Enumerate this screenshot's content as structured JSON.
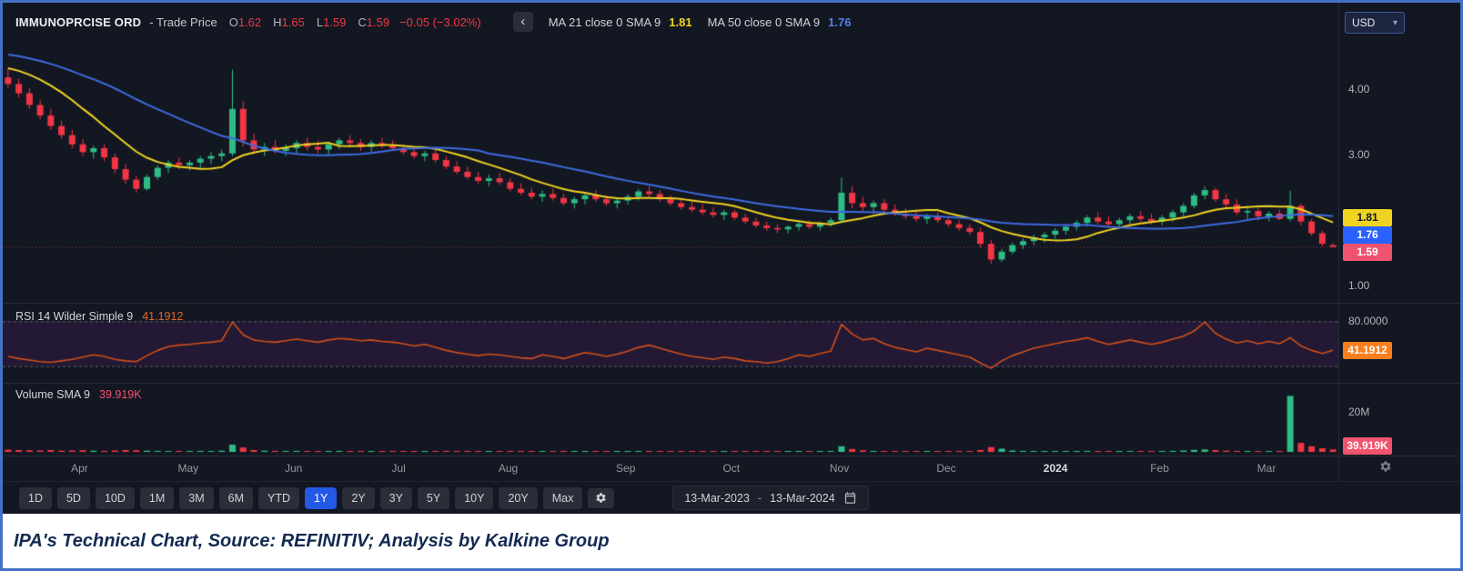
{
  "window": {
    "currency": "USD"
  },
  "icons": {
    "chevron_left": "‹",
    "caret_down": "▾"
  },
  "header": {
    "symbol": "IMMUNOPRCISE ORD",
    "series": "- Trade Price",
    "ohlc": {
      "o_label": "O",
      "o": "1.62",
      "h_label": "H",
      "h": "1.65",
      "l_label": "L",
      "l": "1.59",
      "c_label": "C",
      "c": "1.59",
      "change": "−0.05 (−3.02%)"
    },
    "ma1": {
      "label": "MA 21 close 0 SMA 9",
      "value": "1.81"
    },
    "ma2": {
      "label": "MA 50 close 0 SMA 9",
      "value": "1.76"
    }
  },
  "chart_axis": {
    "p1": "4.00",
    "p2": "3.00",
    "p3": "1.00",
    "ma21": "1.81",
    "ma50": "1.76",
    "last": "1.59",
    "rsi_level": "80.0000",
    "rsi_value": "41.1912",
    "vol_level": "20M",
    "vol_value": "39.919K"
  },
  "rsi_panel": {
    "label": "RSI 14 Wilder Simple 9",
    "value": "41.1912"
  },
  "volume_panel": {
    "label": "Volume SMA 9",
    "value": "39.919K"
  },
  "toolbar": {
    "ranges": [
      "1D",
      "5D",
      "10D",
      "1M",
      "3M",
      "6M",
      "YTD",
      "1Y",
      "2Y",
      "3Y",
      "5Y",
      "10Y",
      "20Y",
      "Max"
    ],
    "selected": "1Y",
    "date_from": "13-Mar-2023",
    "date_sep": "-",
    "date_to": "13-Mar-2024"
  },
  "caption": {
    "text": "IPA's Technical Chart, Source: REFINITIV; Analysis by Kalkine Group"
  },
  "chart_data": {
    "type": "candlestick",
    "title": "IMMUNOPRCISE ORD - Trade Price",
    "panels": [
      "price",
      "rsi",
      "volume"
    ],
    "x_axis": {
      "start": "13-Mar-2023",
      "end": "13-Mar-2024"
    },
    "price_axis": {
      "min": 0.85,
      "max": 4.6,
      "ticks": [
        "4.00",
        "3.00",
        "1.00"
      ]
    },
    "last_price": 1.59,
    "ohlc_last": {
      "open": 1.62,
      "high": 1.65,
      "low": 1.59,
      "close": 1.59,
      "change": -0.05,
      "change_pct": -3.02
    },
    "colors": {
      "up": "#2ebd85",
      "down": "#f23645",
      "ma21": "#f0d321",
      "ma50": "#3d6be0",
      "rsi_line": "#d0501a",
      "rsi_box": "#f97e1e",
      "last_box": "#f0536e",
      "accent_blue": "#2962ff"
    },
    "overlays": [
      {
        "name": "MA 21 close 0 SMA 9",
        "window": 10,
        "seed": 4.35,
        "color": "#f0d321",
        "last": 1.81
      },
      {
        "name": "MA 50 close 0 SMA 9",
        "window": 24,
        "seed": 4.55,
        "color": "#3d6be0",
        "last": 1.76
      }
    ],
    "rsi_levels": [
      80,
      20
    ],
    "rsi_last": 41.1912,
    "rsi_style": {
      "line": "#d0501a",
      "band_fill": "rgba(156,39,176,0.13)",
      "level_line": "#60646e"
    },
    "volume_axis": {
      "tick": "20M",
      "tick_value_m": 20
    },
    "volume_sma_last": "39.919K",
    "months": [
      {
        "label": "Apr",
        "i": 7
      },
      {
        "label": "May",
        "i": 17
      },
      {
        "label": "Jun",
        "i": 27
      },
      {
        "label": "Jul",
        "i": 37
      },
      {
        "label": "Aug",
        "i": 47
      },
      {
        "label": "Sep",
        "i": 58
      },
      {
        "label": "Oct",
        "i": 68
      },
      {
        "label": "Nov",
        "i": 78
      },
      {
        "label": "Dec",
        "i": 88
      },
      {
        "label": "2024",
        "i": 98,
        "bold": true
      },
      {
        "label": "Feb",
        "i": 108
      },
      {
        "label": "Mar",
        "i": 118
      }
    ],
    "candles": [
      [
        4.18,
        4.32,
        4.02,
        4.08
      ],
      [
        4.08,
        4.16,
        3.88,
        3.94
      ],
      [
        3.94,
        4.02,
        3.7,
        3.76
      ],
      [
        3.76,
        3.84,
        3.54,
        3.6
      ],
      [
        3.6,
        3.7,
        3.38,
        3.44
      ],
      [
        3.44,
        3.52,
        3.24,
        3.3
      ],
      [
        3.3,
        3.38,
        3.1,
        3.16
      ],
      [
        3.16,
        3.24,
        2.98,
        3.04
      ],
      [
        3.04,
        3.14,
        2.94,
        3.1
      ],
      [
        3.1,
        3.16,
        2.9,
        2.96
      ],
      [
        2.96,
        3.02,
        2.72,
        2.78
      ],
      [
        2.78,
        2.86,
        2.56,
        2.62
      ],
      [
        2.62,
        2.68,
        2.42,
        2.48
      ],
      [
        2.48,
        2.7,
        2.45,
        2.66
      ],
      [
        2.66,
        2.84,
        2.62,
        2.8
      ],
      [
        2.8,
        2.92,
        2.72,
        2.88
      ],
      [
        2.88,
        2.96,
        2.78,
        2.84
      ],
      [
        2.84,
        2.92,
        2.76,
        2.88
      ],
      [
        2.88,
        2.98,
        2.8,
        2.94
      ],
      [
        2.94,
        3.04,
        2.86,
        2.98
      ],
      [
        2.98,
        3.08,
        2.9,
        3.02
      ],
      [
        3.02,
        4.3,
        2.98,
        3.7
      ],
      [
        3.7,
        3.82,
        3.12,
        3.22
      ],
      [
        3.22,
        3.32,
        3.0,
        3.08
      ],
      [
        3.08,
        3.18,
        2.98,
        3.12
      ],
      [
        3.12,
        3.22,
        3.02,
        3.06
      ],
      [
        3.06,
        3.16,
        2.98,
        3.1
      ],
      [
        3.1,
        3.22,
        3.02,
        3.18
      ],
      [
        3.18,
        3.26,
        3.06,
        3.12
      ],
      [
        3.12,
        3.22,
        3.02,
        3.08
      ],
      [
        3.08,
        3.2,
        3.0,
        3.16
      ],
      [
        3.16,
        3.26,
        3.08,
        3.22
      ],
      [
        3.22,
        3.3,
        3.12,
        3.18
      ],
      [
        3.18,
        3.24,
        3.06,
        3.12
      ],
      [
        3.12,
        3.22,
        3.04,
        3.18
      ],
      [
        3.18,
        3.26,
        3.1,
        3.14
      ],
      [
        3.14,
        3.22,
        3.06,
        3.1
      ],
      [
        3.1,
        3.16,
        3.0,
        3.04
      ],
      [
        3.04,
        3.1,
        2.94,
        2.98
      ],
      [
        2.98,
        3.06,
        2.9,
        3.02
      ],
      [
        3.02,
        3.08,
        2.88,
        2.92
      ],
      [
        2.92,
        2.98,
        2.78,
        2.82
      ],
      [
        2.82,
        2.9,
        2.7,
        2.74
      ],
      [
        2.74,
        2.82,
        2.62,
        2.66
      ],
      [
        2.66,
        2.74,
        2.56,
        2.6
      ],
      [
        2.6,
        2.7,
        2.52,
        2.64
      ],
      [
        2.64,
        2.72,
        2.54,
        2.58
      ],
      [
        2.58,
        2.64,
        2.44,
        2.48
      ],
      [
        2.48,
        2.56,
        2.38,
        2.42
      ],
      [
        2.42,
        2.5,
        2.32,
        2.36
      ],
      [
        2.36,
        2.46,
        2.28,
        2.4
      ],
      [
        2.4,
        2.48,
        2.3,
        2.34
      ],
      [
        2.34,
        2.4,
        2.22,
        2.26
      ],
      [
        2.26,
        2.36,
        2.18,
        2.32
      ],
      [
        2.32,
        2.42,
        2.24,
        2.38
      ],
      [
        2.38,
        2.46,
        2.28,
        2.32
      ],
      [
        2.32,
        2.38,
        2.22,
        2.26
      ],
      [
        2.26,
        2.34,
        2.18,
        2.3
      ],
      [
        2.3,
        2.4,
        2.24,
        2.36
      ],
      [
        2.36,
        2.48,
        2.3,
        2.44
      ],
      [
        2.44,
        2.52,
        2.34,
        2.4
      ],
      [
        2.4,
        2.46,
        2.28,
        2.32
      ],
      [
        2.32,
        2.38,
        2.22,
        2.26
      ],
      [
        2.26,
        2.32,
        2.16,
        2.2
      ],
      [
        2.2,
        2.28,
        2.12,
        2.16
      ],
      [
        2.16,
        2.24,
        2.08,
        2.12
      ],
      [
        2.12,
        2.2,
        2.04,
        2.08
      ],
      [
        2.08,
        2.16,
        2.0,
        2.12
      ],
      [
        2.12,
        2.16,
        2.0,
        2.04
      ],
      [
        2.04,
        2.1,
        1.94,
        1.98
      ],
      [
        1.98,
        2.04,
        1.88,
        1.92
      ],
      [
        1.92,
        1.98,
        1.84,
        1.88
      ],
      [
        1.88,
        1.94,
        1.8,
        1.86
      ],
      [
        1.86,
        1.92,
        1.8,
        1.9
      ],
      [
        1.9,
        1.98,
        1.84,
        1.94
      ],
      [
        1.94,
        2.0,
        1.86,
        1.9
      ],
      [
        1.9,
        1.98,
        1.84,
        1.96
      ],
      [
        1.96,
        2.04,
        1.9,
        2.0
      ],
      [
        2.0,
        2.65,
        1.98,
        2.42
      ],
      [
        2.42,
        2.52,
        2.18,
        2.26
      ],
      [
        2.26,
        2.36,
        2.14,
        2.2
      ],
      [
        2.2,
        2.3,
        2.1,
        2.26
      ],
      [
        2.26,
        2.32,
        2.12,
        2.16
      ],
      [
        2.16,
        2.24,
        2.06,
        2.1
      ],
      [
        2.1,
        2.18,
        2.02,
        2.06
      ],
      [
        2.06,
        2.14,
        1.98,
        2.02
      ],
      [
        2.02,
        2.1,
        1.94,
        2.06
      ],
      [
        2.06,
        2.12,
        1.96,
        2.0
      ],
      [
        2.0,
        2.06,
        1.9,
        1.94
      ],
      [
        1.94,
        2.0,
        1.84,
        1.88
      ],
      [
        1.88,
        1.94,
        1.78,
        1.82
      ],
      [
        1.82,
        1.88,
        1.58,
        1.64
      ],
      [
        1.64,
        1.7,
        1.33,
        1.4
      ],
      [
        1.4,
        1.56,
        1.36,
        1.52
      ],
      [
        1.52,
        1.66,
        1.48,
        1.62
      ],
      [
        1.62,
        1.72,
        1.56,
        1.68
      ],
      [
        1.68,
        1.78,
        1.62,
        1.74
      ],
      [
        1.74,
        1.82,
        1.66,
        1.78
      ],
      [
        1.78,
        1.88,
        1.72,
        1.84
      ],
      [
        1.84,
        1.94,
        1.78,
        1.9
      ],
      [
        1.9,
        2.0,
        1.84,
        1.96
      ],
      [
        1.96,
        2.08,
        1.9,
        2.04
      ],
      [
        2.04,
        2.12,
        1.94,
        1.98
      ],
      [
        1.98,
        2.06,
        1.9,
        1.94
      ],
      [
        1.94,
        2.04,
        1.88,
        2.0
      ],
      [
        2.0,
        2.1,
        1.92,
        2.06
      ],
      [
        2.06,
        2.14,
        1.98,
        2.02
      ],
      [
        2.02,
        2.1,
        1.94,
        1.98
      ],
      [
        1.98,
        2.08,
        1.92,
        2.04
      ],
      [
        2.04,
        2.16,
        1.98,
        2.12
      ],
      [
        2.12,
        2.26,
        2.06,
        2.22
      ],
      [
        2.22,
        2.42,
        2.18,
        2.38
      ],
      [
        2.38,
        2.52,
        2.32,
        2.46
      ],
      [
        2.46,
        2.5,
        2.28,
        2.32
      ],
      [
        2.32,
        2.4,
        2.18,
        2.24
      ],
      [
        2.24,
        2.32,
        2.08,
        2.12
      ],
      [
        2.12,
        2.22,
        2.02,
        2.14
      ],
      [
        2.14,
        2.2,
        2.0,
        2.06
      ],
      [
        2.06,
        2.14,
        1.98,
        2.1
      ],
      [
        2.1,
        2.16,
        2.0,
        2.02
      ],
      [
        2.02,
        2.45,
        1.98,
        2.22
      ],
      [
        2.22,
        2.26,
        1.92,
        1.98
      ],
      [
        1.98,
        2.02,
        1.76,
        1.8
      ],
      [
        1.8,
        1.84,
        1.6,
        1.64
      ],
      [
        1.62,
        1.65,
        1.59,
        1.59
      ]
    ],
    "volumes_m": [
      1.1,
      0.9,
      0.8,
      0.7,
      0.9,
      0.6,
      0.7,
      0.8,
      0.6,
      0.5,
      0.7,
      0.9,
      0.8,
      0.6,
      0.5,
      0.4,
      0.5,
      0.4,
      0.5,
      0.4,
      0.6,
      3.6,
      2.2,
      0.9,
      0.6,
      0.5,
      0.4,
      0.5,
      0.4,
      0.3,
      0.4,
      0.5,
      0.4,
      0.3,
      0.4,
      0.3,
      0.3,
      0.4,
      0.3,
      0.3,
      0.4,
      0.5,
      0.4,
      0.5,
      0.4,
      0.3,
      0.3,
      0.5,
      0.4,
      0.3,
      0.3,
      0.4,
      0.5,
      0.3,
      0.3,
      0.4,
      0.3,
      0.3,
      0.4,
      0.5,
      0.4,
      0.3,
      0.3,
      0.4,
      0.3,
      0.4,
      0.3,
      0.3,
      0.4,
      0.3,
      0.3,
      0.4,
      0.3,
      0.2,
      0.3,
      0.3,
      0.2,
      0.3,
      2.8,
      1.4,
      0.8,
      0.5,
      0.4,
      0.4,
      0.3,
      0.3,
      0.3,
      0.2,
      0.3,
      0.3,
      0.4,
      0.9,
      2.4,
      1.6,
      0.7,
      0.5,
      0.4,
      0.3,
      0.4,
      0.3,
      0.4,
      0.5,
      0.4,
      0.3,
      0.3,
      0.4,
      0.3,
      0.3,
      0.4,
      0.5,
      0.7,
      1.0,
      1.2,
      0.9,
      0.6,
      0.5,
      0.4,
      0.4,
      0.4,
      0.3,
      28.0,
      4.5,
      2.8,
      1.8,
      1.2
    ],
    "rsi": [
      33,
      30,
      28,
      26,
      25,
      27,
      29,
      32,
      35,
      33,
      29,
      27,
      26,
      34,
      41,
      46,
      48,
      49,
      51,
      52,
      54,
      79,
      62,
      55,
      53,
      52,
      54,
      56,
      54,
      52,
      55,
      57,
      56,
      54,
      55,
      53,
      52,
      50,
      47,
      49,
      45,
      41,
      38,
      36,
      34,
      36,
      35,
      33,
      31,
      30,
      35,
      33,
      30,
      34,
      38,
      36,
      33,
      36,
      40,
      45,
      48,
      44,
      40,
      36,
      33,
      31,
      29,
      32,
      30,
      27,
      26,
      24,
      26,
      30,
      35,
      33,
      37,
      40,
      76,
      63,
      55,
      57,
      50,
      45,
      42,
      39,
      44,
      41,
      38,
      35,
      32,
      24,
      17,
      27,
      34,
      39,
      44,
      47,
      50,
      53,
      55,
      58,
      53,
      49,
      52,
      55,
      52,
      49,
      52,
      56,
      60,
      67,
      79,
      64,
      56,
      51,
      54,
      50,
      53,
      50,
      58,
      47,
      41,
      37,
      41.19
    ]
  }
}
